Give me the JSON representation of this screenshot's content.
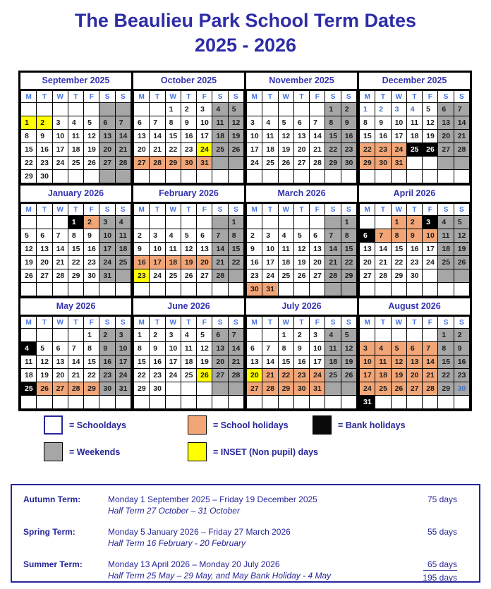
{
  "title": {
    "line1": "The Beaulieu Park School Term Dates",
    "line2": "2025 - 2026"
  },
  "day_headers": [
    "M",
    "T",
    "W",
    "T",
    "F",
    "S",
    "S"
  ],
  "cell_type_key": {
    "s": "schoolday",
    "w": "weekend",
    "h": "school-holiday",
    "b": "bank-holiday",
    "i": "inset-day",
    "e": "empty",
    "ew": "empty-weekend",
    "B-suffix": "blue-colored-number"
  },
  "months": [
    {
      "name": "September 2025",
      "weeks": [
        [
          "|e",
          "|e",
          "|e",
          "|e",
          "|e",
          "|ew",
          "|ew"
        ],
        [
          "1|i",
          "2|i",
          "3|s",
          "4|s",
          "5|s",
          "6|w",
          "7|w"
        ],
        [
          "8|s",
          "9|s",
          "10|s",
          "11|s",
          "12|s",
          "13|w",
          "14|w"
        ],
        [
          "15|s",
          "16|s",
          "17|s",
          "18|s",
          "19|s",
          "20|w",
          "21|w"
        ],
        [
          "22|s",
          "23|s",
          "24|s",
          "25|s",
          "26|s",
          "27|w",
          "28|w"
        ],
        [
          "29|s",
          "30|s",
          "|e",
          "|e",
          "|e",
          "|ew",
          "|ew"
        ]
      ]
    },
    {
      "name": "October 2025",
      "weeks": [
        [
          "|e",
          "|e",
          "1|s",
          "2|s",
          "3|s",
          "4|w",
          "5|w"
        ],
        [
          "6|s",
          "7|s",
          "8|s",
          "9|s",
          "10|s",
          "11|w",
          "12|w"
        ],
        [
          "13|s",
          "14|s",
          "15|s",
          "16|s",
          "17|s",
          "18|w",
          "19|w"
        ],
        [
          "20|s",
          "21|s",
          "22|s",
          "23|s",
          "24|i",
          "25|w",
          "26|w"
        ],
        [
          "27|h",
          "28|h",
          "29|h",
          "30|h",
          "31|h",
          "|ew",
          "|ew"
        ],
        [
          "|e",
          "|e",
          "|e",
          "|e",
          "|e",
          "|e",
          "|e"
        ]
      ]
    },
    {
      "name": "November 2025",
      "weeks": [
        [
          "|e",
          "|e",
          "|e",
          "|e",
          "|e",
          "1|w",
          "2|w"
        ],
        [
          "3|s",
          "4|s",
          "5|s",
          "6|s",
          "7|s",
          "8|w",
          "9|w"
        ],
        [
          "10|s",
          "11|s",
          "12|s",
          "13|s",
          "14|s",
          "15|w",
          "16|w"
        ],
        [
          "17|s",
          "18|s",
          "19|s",
          "20|s",
          "21|s",
          "22|w",
          "23|w"
        ],
        [
          "24|s",
          "25|s",
          "26|s",
          "27|s",
          "28|s",
          "29|w",
          "30|w"
        ],
        [
          "|e",
          "|e",
          "|e",
          "|e",
          "|e",
          "|e",
          "|e"
        ]
      ]
    },
    {
      "name": "December 2025",
      "weeks": [
        [
          "1|sB",
          "2|sB",
          "3|sB",
          "4|sB",
          "5|s",
          "6|w",
          "7|w"
        ],
        [
          "8|s",
          "9|s",
          "10|s",
          "11|s",
          "12|s",
          "13|w",
          "14|w"
        ],
        [
          "15|s",
          "16|s",
          "17|s",
          "18|s",
          "19|s",
          "20|w",
          "21|w"
        ],
        [
          "22|h",
          "23|h",
          "24|h",
          "25|b",
          "26|b",
          "27|w",
          "28|w"
        ],
        [
          "29|h",
          "30|h",
          "31|h",
          "|e",
          "|e",
          "|ew",
          "|ew"
        ],
        [
          "|e",
          "|e",
          "|e",
          "|e",
          "|e",
          "|e",
          "|e"
        ]
      ]
    },
    {
      "name": "January 2026",
      "weeks": [
        [
          "|e",
          "|e",
          "|e",
          "1|b",
          "2|h",
          "3|w",
          "4|w"
        ],
        [
          "5|s",
          "6|s",
          "7|s",
          "8|s",
          "9|s",
          "10|w",
          "11|w"
        ],
        [
          "12|s",
          "13|s",
          "14|s",
          "15|s",
          "16|s",
          "17|w",
          "18|w"
        ],
        [
          "19|s",
          "20|s",
          "21|s",
          "22|s",
          "23|s",
          "24|w",
          "25|w"
        ],
        [
          "26|s",
          "27|s",
          "28|s",
          "29|s",
          "30|s",
          "31|w",
          "|ew"
        ],
        [
          "|e",
          "|e",
          "|e",
          "|e",
          "|e",
          "|e",
          "|e"
        ]
      ]
    },
    {
      "name": "February 2026",
      "weeks": [
        [
          "|e",
          "|e",
          "|e",
          "|e",
          "|e",
          "|ew",
          "1|w"
        ],
        [
          "2|s",
          "3|s",
          "4|s",
          "5|s",
          "6|s",
          "7|w",
          "8|w"
        ],
        [
          "9|s",
          "10|s",
          "11|s",
          "12|s",
          "13|s",
          "14|w",
          "15|w"
        ],
        [
          "16|h",
          "17|h",
          "18|h",
          "19|h",
          "20|h",
          "21|w",
          "22|w"
        ],
        [
          "23|i",
          "24|s",
          "25|s",
          "26|s",
          "27|s",
          "28|w",
          "|ew"
        ],
        [
          "|e",
          "|e",
          "|e",
          "|e",
          "|e",
          "|e",
          "|e"
        ]
      ]
    },
    {
      "name": "March 2026",
      "weeks": [
        [
          "|e",
          "|e",
          "|e",
          "|e",
          "|e",
          "|ew",
          "1|w"
        ],
        [
          "2|s",
          "3|s",
          "4|s",
          "5|s",
          "6|s",
          "7|w",
          "8|w"
        ],
        [
          "9|s",
          "10|s",
          "11|s",
          "12|s",
          "13|s",
          "14|w",
          "15|w"
        ],
        [
          "16|s",
          "17|s",
          "18|s",
          "19|s",
          "20|s",
          "21|w",
          "22|w"
        ],
        [
          "23|s",
          "24|s",
          "25|s",
          "26|s",
          "27|s",
          "28|w",
          "29|w"
        ],
        [
          "30|h",
          "31|h",
          "|e",
          "|e",
          "|e",
          "|ew",
          "|ew"
        ]
      ]
    },
    {
      "name": "April 2026",
      "weeks": [
        [
          "|e",
          "|e",
          "1|h",
          "2|h",
          "3|b",
          "4|w",
          "5|w"
        ],
        [
          "6|b",
          "7|h",
          "8|h",
          "9|h",
          "10|h",
          "11|w",
          "12|w"
        ],
        [
          "13|s",
          "14|s",
          "15|s",
          "16|s",
          "17|s",
          "18|w",
          "19|w"
        ],
        [
          "20|s",
          "21|s",
          "22|s",
          "23|s",
          "24|s",
          "25|w",
          "26|w"
        ],
        [
          "27|s",
          "28|s",
          "29|s",
          "30|s",
          "|e",
          "|ew",
          "|ew"
        ],
        [
          "|e",
          "|e",
          "|e",
          "|e",
          "|e",
          "|e",
          "|e"
        ]
      ]
    },
    {
      "name": "May 2026",
      "weeks": [
        [
          "|e",
          "|e",
          "|e",
          "|e",
          "1|s",
          "2|w",
          "3|w"
        ],
        [
          "4|b",
          "5|s",
          "6|s",
          "7|s",
          "8|s",
          "9|w",
          "10|w"
        ],
        [
          "11|s",
          "12|s",
          "13|s",
          "14|s",
          "15|s",
          "16|w",
          "17|w"
        ],
        [
          "18|s",
          "19|s",
          "20|s",
          "21|s",
          "22|s",
          "23|w",
          "24|w"
        ],
        [
          "25|b",
          "26|h",
          "27|h",
          "28|h",
          "29|h",
          "30|w",
          "31|w"
        ],
        [
          "|e",
          "|e",
          "|e",
          "|e",
          "|e",
          "|e",
          "|e"
        ]
      ]
    },
    {
      "name": "June 2026",
      "weeks": [
        [
          "1|s",
          "2|s",
          "3|s",
          "4|s",
          "5|s",
          "6|w",
          "7|w"
        ],
        [
          "8|s",
          "9|s",
          "10|s",
          "11|s",
          "12|s",
          "13|w",
          "14|w"
        ],
        [
          "15|s",
          "16|s",
          "17|s",
          "18|s",
          "19|s",
          "20|w",
          "21|w"
        ],
        [
          "22|s",
          "23|s",
          "24|s",
          "25|s",
          "26|i",
          "27|w",
          "28|w"
        ],
        [
          "29|s",
          "30|s",
          "|e",
          "|e",
          "|e",
          "|ew",
          "|ew"
        ],
        [
          "|e",
          "|e",
          "|e",
          "|e",
          "|e",
          "|e",
          "|e"
        ]
      ]
    },
    {
      "name": "July 2026",
      "weeks": [
        [
          "|e",
          "|e",
          "1|s",
          "2|s",
          "3|s",
          "4|w",
          "5|w"
        ],
        [
          "6|s",
          "7|s",
          "8|s",
          "9|s",
          "10|s",
          "11|w",
          "12|w"
        ],
        [
          "13|s",
          "14|s",
          "15|s",
          "16|s",
          "17|s",
          "18|w",
          "19|w"
        ],
        [
          "20|i",
          "21|h",
          "22|h",
          "23|h",
          "24|h",
          "25|w",
          "26|w"
        ],
        [
          "27|h",
          "28|h",
          "29|h",
          "30|h",
          "31|h",
          "|ew",
          "|ew"
        ],
        [
          "|e",
          "|e",
          "|e",
          "|e",
          "|e",
          "|e",
          "|e"
        ]
      ]
    },
    {
      "name": "August 2026",
      "weeks": [
        [
          "|e",
          "|e",
          "|e",
          "|e",
          "|e",
          "1|w",
          "2|w"
        ],
        [
          "3|h",
          "4|h",
          "5|h",
          "6|h",
          "7|h",
          "8|w",
          "9|w"
        ],
        [
          "10|h",
          "11|h",
          "12|h",
          "13|h",
          "14|h",
          "15|w",
          "16|w"
        ],
        [
          "17|h",
          "18|h",
          "19|h",
          "20|h",
          "21|h",
          "22|w",
          "23|w"
        ],
        [
          "24|h",
          "25|h",
          "26|h",
          "27|h",
          "28|h",
          "29|w",
          "30|wB"
        ],
        [
          "31|b",
          "|e",
          "|e",
          "|e",
          "|e",
          "|e",
          "|e"
        ]
      ]
    }
  ],
  "legend": {
    "schooldays": {
      "label": "= Schooldays"
    },
    "school_holidays": {
      "label": "= School holidays"
    },
    "bank_holidays": {
      "label": "= Bank holidays"
    },
    "weekends": {
      "label": "= Weekends"
    },
    "inset_days": {
      "label": "= INSET (Non pupil) days"
    }
  },
  "summary": {
    "terms": [
      {
        "name": "Autumn Term:",
        "dates": "Monday 1 September 2025 – Friday 19 December 2025",
        "half_term": "Half Term 27 October – 31 October",
        "days": "75 days"
      },
      {
        "name": "Spring Term:",
        "dates": "Monday 5 January 2026 – Friday 27 March 2026",
        "half_term": "Half Term 16 February - 20 February",
        "days": "55 days"
      },
      {
        "name": "Summer Term:",
        "dates": "Monday 13 April 2026 – Monday 20 July 2026",
        "half_term": "Half Term 25 May – 29 May, and May Bank Holiday - 4 May",
        "days": "65 days"
      }
    ],
    "total_days": "195 days"
  },
  "colors": {
    "school_holiday": "#F2A678",
    "weekend": "#A6A6A6",
    "bank_holiday": "#000000",
    "inset_day": "#FFFF00",
    "schoolday": "#FFFFFF",
    "navy_text": "#26269B",
    "month_title_blue": "#3333B2",
    "day_header_blue": "#4472E3",
    "page_title_blue": "#2D2DA6",
    "alt_date_blue": "#4472C4"
  }
}
